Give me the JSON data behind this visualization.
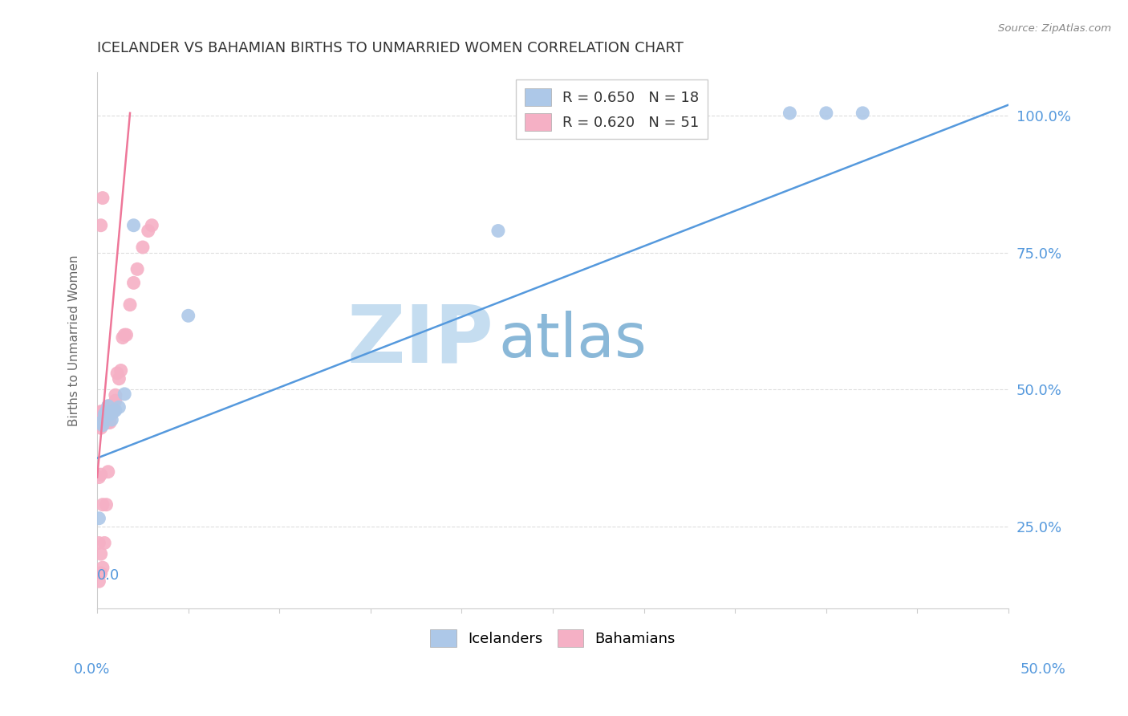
{
  "title": "ICELANDER VS BAHAMIAN BIRTHS TO UNMARRIED WOMEN CORRELATION CHART",
  "source": "Source: ZipAtlas.com",
  "ylabel": "Births to Unmarried Women",
  "yticks": [
    0.25,
    0.5,
    0.75,
    1.0
  ],
  "ytick_labels": [
    "25.0%",
    "50.0%",
    "75.0%",
    "100.0%"
  ],
  "xlim": [
    0.0,
    0.5
  ],
  "ylim": [
    0.1,
    1.08
  ],
  "legend_ice_label": "R = 0.650   N = 18",
  "legend_bah_label": "R = 0.620   N = 51",
  "watermark_zip": "ZIP",
  "watermark_atlas": "atlas",
  "watermark_zip_color": "#c5ddf0",
  "watermark_atlas_color": "#8ab8d8",
  "icelander_color": "#adc8e8",
  "bahamian_color": "#f5b0c5",
  "icelander_line_color": "#5599dd",
  "bahamian_line_color": "#ee7799",
  "background_color": "#ffffff",
  "grid_color": "#dddddd",
  "title_color": "#333333",
  "axis_tick_color": "#5599dd",
  "ice_x": [
    0.001,
    0.002,
    0.003,
    0.004,
    0.005,
    0.006,
    0.007,
    0.008,
    0.009,
    0.01,
    0.012,
    0.015,
    0.02,
    0.05,
    0.22,
    0.38,
    0.4,
    0.42
  ],
  "ice_y": [
    0.265,
    0.44,
    0.435,
    0.455,
    0.46,
    0.47,
    0.455,
    0.445,
    0.46,
    0.462,
    0.468,
    0.492,
    0.8,
    0.635,
    0.79,
    1.005,
    1.005,
    1.005
  ],
  "bah_x": [
    0.001,
    0.001,
    0.001,
    0.001,
    0.001,
    0.002,
    0.002,
    0.002,
    0.002,
    0.002,
    0.002,
    0.003,
    0.003,
    0.003,
    0.003,
    0.003,
    0.004,
    0.004,
    0.004,
    0.004,
    0.005,
    0.005,
    0.005,
    0.005,
    0.006,
    0.006,
    0.006,
    0.006,
    0.007,
    0.007,
    0.007,
    0.008,
    0.008,
    0.009,
    0.009,
    0.01,
    0.01,
    0.011,
    0.012,
    0.013,
    0.014,
    0.015,
    0.016,
    0.018,
    0.02,
    0.022,
    0.025,
    0.028,
    0.03,
    0.002,
    0.003
  ],
  "bah_y": [
    0.15,
    0.22,
    0.34,
    0.435,
    0.455,
    0.165,
    0.2,
    0.345,
    0.43,
    0.45,
    0.46,
    0.175,
    0.29,
    0.44,
    0.455,
    0.46,
    0.22,
    0.44,
    0.455,
    0.46,
    0.29,
    0.44,
    0.455,
    0.46,
    0.35,
    0.44,
    0.455,
    0.47,
    0.44,
    0.455,
    0.47,
    0.455,
    0.47,
    0.46,
    0.47,
    0.48,
    0.49,
    0.53,
    0.52,
    0.535,
    0.595,
    0.6,
    0.6,
    0.655,
    0.695,
    0.72,
    0.76,
    0.79,
    0.8,
    0.8,
    0.85
  ],
  "ice_line_x0": 0.0,
  "ice_line_x1": 0.5,
  "ice_line_y0": 0.375,
  "ice_line_y1": 1.02,
  "bah_line_x0": 0.0,
  "bah_line_x1": 0.018,
  "bah_line_y0": 0.34,
  "bah_line_y1": 1.005,
  "figsize": [
    14.06,
    8.92
  ],
  "dpi": 100
}
